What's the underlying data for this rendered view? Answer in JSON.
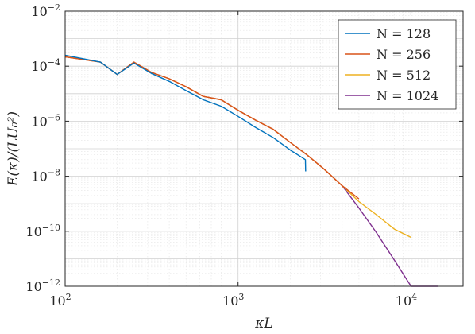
{
  "chart_data": {
    "type": "line",
    "xscale": "log",
    "yscale": "log",
    "xlim": [
      100,
      20000
    ],
    "ylim": [
      1e-12,
      0.01
    ],
    "grid": true,
    "legend_position": "top-right",
    "xlabel": "κL",
    "ylabel": "E(κ)/(LU₀²)",
    "x_ticks": [
      {
        "value": 100,
        "base": "10",
        "exp": "2"
      },
      {
        "value": 1000,
        "base": "10",
        "exp": "3"
      },
      {
        "value": 10000,
        "base": "10",
        "exp": "4"
      }
    ],
    "y_ticks": [
      {
        "value": 1e-12,
        "base": "10",
        "exp": "−12"
      },
      {
        "value": 1e-10,
        "base": "10",
        "exp": "−10"
      },
      {
        "value": 1e-08,
        "base": "10",
        "exp": "−8"
      },
      {
        "value": 1e-06,
        "base": "10",
        "exp": "−6"
      },
      {
        "value": 0.0001,
        "base": "10",
        "exp": "−4"
      },
      {
        "value": 0.01,
        "base": "10",
        "exp": "−2"
      }
    ],
    "series": [
      {
        "name": "N = 1024",
        "color": "#7E2F8E",
        "x": [
          100,
          160,
          200,
          250,
          315,
          400,
          500,
          630,
          800,
          1000,
          1260,
          1600,
          2000,
          2500,
          3150,
          4000,
          5000,
          6300,
          8000,
          10000,
          12600,
          14300
        ],
        "y": [
          0.00022,
          0.00014,
          5e-05,
          0.00014,
          6e-05,
          3.5e-05,
          1.8e-05,
          8e-06,
          6e-06,
          2.5e-06,
          1.1e-06,
          5e-07,
          1.7e-07,
          6e-08,
          1.8e-08,
          4.5e-09,
          7e-10,
          9e-11,
          9e-12,
          1e-12,
          6e-14,
          1e-12
        ]
      },
      {
        "name": "N = 512",
        "color": "#EDB120",
        "x": [
          100,
          160,
          200,
          250,
          315,
          400,
          500,
          630,
          800,
          1000,
          1260,
          1600,
          2000,
          2500,
          3150,
          4000,
          5000,
          6300,
          8000,
          10000
        ],
        "y": [
          0.00022,
          0.00014,
          5e-05,
          0.00014,
          6e-05,
          3.5e-05,
          1.8e-05,
          8e-06,
          6e-06,
          2.5e-06,
          1.1e-06,
          5e-07,
          1.7e-07,
          6e-08,
          1.8e-08,
          4.5e-09,
          1.2e-09,
          4e-10,
          1.2e-10,
          6e-11
        ]
      },
      {
        "name": "N = 256",
        "color": "#D95319",
        "x": [
          100,
          160,
          200,
          250,
          315,
          400,
          500,
          630,
          800,
          1000,
          1260,
          1600,
          2000,
          2500,
          3150,
          4000,
          5000
        ],
        "y": [
          0.00022,
          0.00014,
          5e-05,
          0.00014,
          6e-05,
          3.5e-05,
          1.8e-05,
          8e-06,
          6e-06,
          2.5e-06,
          1.1e-06,
          5e-07,
          1.7e-07,
          6e-08,
          1.8e-08,
          4.5e-09,
          1.5e-09
        ]
      },
      {
        "name": "N = 128",
        "color": "#0072BD",
        "x": [
          100,
          160,
          200,
          250,
          315,
          400,
          500,
          630,
          800,
          1000,
          1260,
          1600,
          2000,
          2450,
          2460
        ],
        "y": [
          0.00025,
          0.00014,
          5e-05,
          0.00013,
          5.5e-05,
          2.8e-05,
          1.3e-05,
          6e-06,
          3.5e-06,
          1.5e-06,
          6e-07,
          2.5e-07,
          9e-08,
          4e-08,
          1.5e-08
        ]
      }
    ],
    "legend_order": [
      3,
      2,
      1,
      0
    ]
  }
}
